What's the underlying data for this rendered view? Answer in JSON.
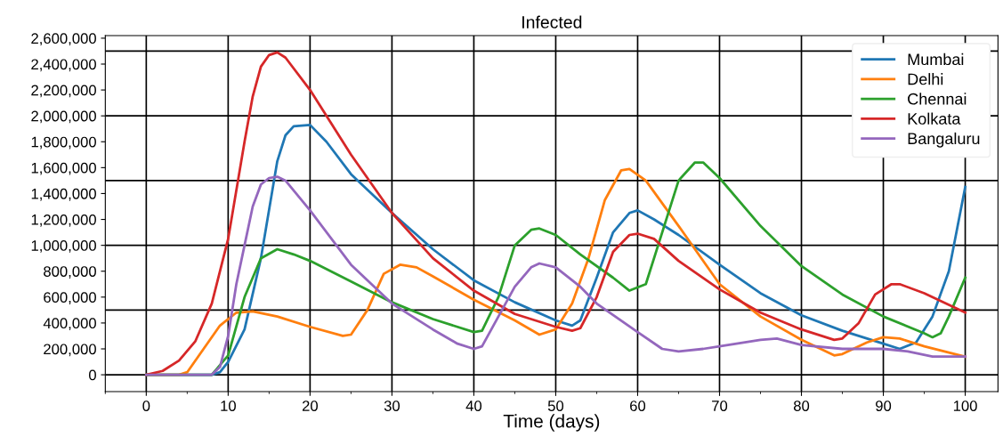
{
  "chart_data": {
    "type": "line",
    "title": "Infected",
    "xlabel": "Time (days)",
    "xlim": [
      -5,
      104
    ],
    "ylim": [
      -130000,
      2620000
    ],
    "xticks": [
      {
        "value": -5,
        "label": null
      },
      0,
      {
        "value": 5,
        "label": null
      },
      10,
      {
        "value": 15,
        "label": null
      },
      20,
      {
        "value": 25,
        "label": null
      },
      30,
      {
        "value": 35,
        "label": null
      },
      40,
      {
        "value": 45,
        "label": null
      },
      50,
      {
        "value": 55,
        "label": null
      },
      60,
      {
        "value": 65,
        "label": null
      },
      70,
      {
        "value": 75,
        "label": null
      },
      80,
      {
        "value": 85,
        "label": null
      },
      90,
      {
        "value": 95,
        "label": null
      },
      100
    ],
    "yticks": [
      {
        "value": 0,
        "label": "0"
      },
      {
        "value": 200000,
        "label": "200,000"
      },
      {
        "value": 400000,
        "label": "400,000"
      },
      {
        "value": 600000,
        "label": "600,000"
      },
      {
        "value": 800000,
        "label": "800,000"
      },
      {
        "value": 1000000,
        "label": "1,000,000"
      },
      {
        "value": 1200000,
        "label": "1,200,000"
      },
      {
        "value": 1400000,
        "label": "1,400,000"
      },
      {
        "value": 1600000,
        "label": "1,600,000"
      },
      {
        "value": 1800000,
        "label": "1,800,000"
      },
      {
        "value": 2000000,
        "label": "2,000,000"
      },
      {
        "value": 2200000,
        "label": "2,200,000"
      },
      {
        "value": 2400000,
        "label": "2,400,000"
      },
      {
        "value": 2600000,
        "label": "2,600,000"
      }
    ],
    "grid": "x",
    "legend": "top right",
    "marker": "none",
    "line_style": "solid",
    "ref_lines": [
      {
        "axis": "y",
        "value": 0,
        "color": "#000000"
      },
      {
        "axis": "y",
        "value": 500000,
        "color": "#000000"
      },
      {
        "axis": "y",
        "value": 1000000,
        "color": "#000000"
      },
      {
        "axis": "y",
        "value": 1500000,
        "color": "#000000"
      },
      {
        "axis": "y",
        "value": 2000000,
        "color": "#000000"
      },
      {
        "axis": "y",
        "value": 2500000,
        "color": "#000000"
      }
    ],
    "series": [
      {
        "name": "Mumbai",
        "color": "#1f77b4",
        "x": [
          0,
          8,
          9,
          10,
          12,
          14,
          16,
          17,
          18,
          20,
          22,
          25,
          30,
          35,
          40,
          45,
          50,
          52,
          53,
          55,
          57,
          59,
          60,
          62,
          65,
          70,
          75,
          80,
          85,
          90,
          92,
          94,
          96,
          98,
          100
        ],
        "values": [
          0,
          0,
          20000,
          100000,
          350000,
          900000,
          1650000,
          1850000,
          1920000,
          1930000,
          1800000,
          1550000,
          1250000,
          970000,
          730000,
          560000,
          420000,
          380000,
          420000,
          750000,
          1100000,
          1250000,
          1270000,
          1200000,
          1080000,
          850000,
          630000,
          460000,
          340000,
          240000,
          200000,
          250000,
          450000,
          800000,
          1450000
        ]
      },
      {
        "name": "Delhi",
        "color": "#ff7f0e",
        "x": [
          0,
          4,
          5,
          7,
          9,
          11,
          13,
          16,
          20,
          24,
          25,
          27,
          29,
          31,
          33,
          35,
          40,
          45,
          48,
          50,
          52,
          54,
          56,
          58,
          59,
          61,
          65,
          70,
          75,
          80,
          84,
          85,
          88,
          90,
          92,
          95,
          100
        ],
        "values": [
          0,
          0,
          20000,
          200000,
          380000,
          480000,
          490000,
          450000,
          370000,
          300000,
          310000,
          500000,
          780000,
          850000,
          830000,
          760000,
          580000,
          420000,
          310000,
          350000,
          550000,
          900000,
          1350000,
          1580000,
          1590000,
          1500000,
          1150000,
          700000,
          450000,
          270000,
          150000,
          160000,
          250000,
          290000,
          280000,
          220000,
          140000
        ]
      },
      {
        "name": "Chennai",
        "color": "#2ca02c",
        "x": [
          0,
          8,
          10,
          12,
          14,
          16,
          18,
          20,
          25,
          30,
          35,
          40,
          41,
          43,
          45,
          47,
          48,
          50,
          53,
          57,
          59,
          61,
          63,
          65,
          67,
          68,
          70,
          75,
          80,
          85,
          90,
          95,
          96,
          97,
          98,
          100
        ],
        "values": [
          0,
          0,
          150000,
          600000,
          900000,
          970000,
          930000,
          880000,
          720000,
          560000,
          430000,
          330000,
          340000,
          600000,
          1000000,
          1120000,
          1130000,
          1080000,
          930000,
          750000,
          650000,
          700000,
          1100000,
          1500000,
          1640000,
          1640000,
          1520000,
          1150000,
          840000,
          620000,
          450000,
          320000,
          290000,
          320000,
          450000,
          750000
        ]
      },
      {
        "name": "Kolkata",
        "color": "#d62728",
        "x": [
          0,
          2,
          4,
          6,
          8,
          10,
          12,
          13,
          14,
          15,
          16,
          17,
          20,
          25,
          30,
          35,
          40,
          45,
          50,
          52,
          53,
          55,
          57,
          59,
          60,
          62,
          65,
          70,
          75,
          80,
          84,
          85,
          87,
          89,
          91,
          92,
          95,
          100
        ],
        "values": [
          0,
          30000,
          110000,
          260000,
          550000,
          1050000,
          1800000,
          2150000,
          2380000,
          2470000,
          2490000,
          2450000,
          2200000,
          1700000,
          1250000,
          900000,
          650000,
          470000,
          370000,
          340000,
          360000,
          600000,
          950000,
          1080000,
          1090000,
          1050000,
          880000,
          660000,
          480000,
          350000,
          270000,
          280000,
          400000,
          620000,
          700000,
          700000,
          630000,
          480000
        ]
      },
      {
        "name": "Bangaluru",
        "color": "#9467bd",
        "x": [
          0,
          8,
          9,
          10,
          11,
          12,
          13,
          14,
          15,
          16,
          17,
          20,
          25,
          30,
          35,
          38,
          40,
          41,
          43,
          45,
          47,
          48,
          50,
          53,
          55,
          60,
          63,
          65,
          68,
          70,
          75,
          77,
          80,
          85,
          90,
          93,
          96,
          100
        ],
        "values": [
          0,
          0,
          60000,
          300000,
          700000,
          1000000,
          1300000,
          1470000,
          1520000,
          1530000,
          1500000,
          1270000,
          850000,
          550000,
          350000,
          240000,
          200000,
          220000,
          450000,
          680000,
          830000,
          860000,
          830000,
          680000,
          550000,
          330000,
          200000,
          180000,
          200000,
          220000,
          270000,
          280000,
          230000,
          200000,
          200000,
          180000,
          140000,
          140000
        ]
      }
    ]
  }
}
